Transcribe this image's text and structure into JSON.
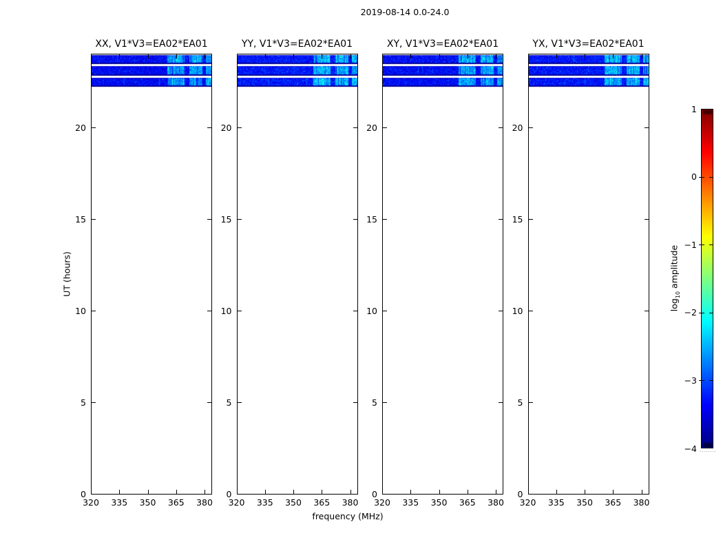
{
  "figure": {
    "suptitle": "2019-08-14 0.0-24.0",
    "background_color": "#ffffff",
    "axis_color": "#000000"
  },
  "chart_data": {
    "type": "heatmap",
    "title": "2019-08-14 0.0-24.0",
    "xlabel": "frequency (MHz)",
    "ylabel": "UT (hours)",
    "panels": [
      {
        "pol": "XX",
        "title": "XX, V1*V3=EA02*EA01",
        "seed": 101,
        "base_log_amp": -3.38
      },
      {
        "pol": "YY",
        "title": "YY, V1*V3=EA02*EA01",
        "seed": 202,
        "base_log_amp": -3.28
      },
      {
        "pol": "XY",
        "title": "XY, V1*V3=EA02*EA01",
        "seed": 303,
        "base_log_amp": -3.36
      },
      {
        "pol": "YX",
        "title": "YX, V1*V3=EA02*EA01",
        "seed": 404,
        "base_log_amp": -3.3
      }
    ],
    "x_axis": {
      "label": "frequency (MHz)",
      "range_mhz": [
        320,
        384
      ],
      "ticks": [
        320,
        335,
        350,
        365,
        380
      ]
    },
    "y_axis": {
      "label": "UT (hours)",
      "range_hours": [
        0,
        24
      ],
      "ticks": [
        0,
        5,
        10,
        15,
        20
      ]
    },
    "colorbar": {
      "label_pre": "log",
      "label_sub": "10",
      "label_post": " amplitude",
      "colormap": "jet",
      "range": [
        -4,
        1
      ],
      "tick_values": [
        1,
        0,
        -1,
        -2,
        -3,
        -4
      ],
      "tick_labels": [
        "1",
        "0",
        "−1",
        "−2",
        "−3",
        "−4"
      ],
      "top_color": "#800000",
      "bottom_color": "#000080"
    },
    "scans_ut_hours": [
      {
        "ut_start": 23.51,
        "ut_end": 23.96
      },
      {
        "ut_start": 22.87,
        "ut_end": 23.36
      },
      {
        "ut_start": 22.27,
        "ut_end": 22.72
      }
    ],
    "noise": {
      "sigma_log_amp": 0.3,
      "dark_edge_log_amp": -3.85,
      "rfi_clusters_freq_frac": [
        [
          0.63,
          0.775
        ],
        [
          0.815,
          0.925
        ],
        [
          0.95,
          1.0
        ]
      ],
      "rfi_boost_log_amp": 1.25,
      "rfi_bright_freq_mhz": [
        360,
        384
      ]
    }
  }
}
